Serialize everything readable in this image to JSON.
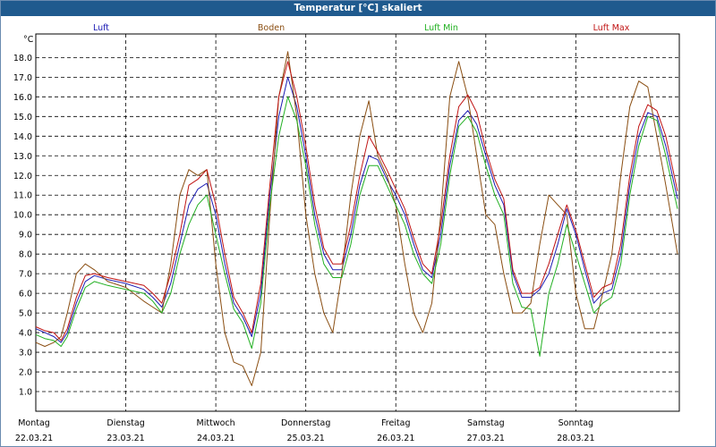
{
  "window": {
    "title": "Temperatur [°C] skaliert"
  },
  "colors": {
    "luft": "#1c1cb4",
    "boden": "#8a4e12",
    "luft_min": "#22b022",
    "luft_max": "#c01414",
    "grid": "#000000",
    "border": "#000000"
  },
  "chart_data": {
    "type": "line",
    "title": "Temperatur [°C] skaliert",
    "ylabel": "°C",
    "ylim": [
      0,
      19.2
    ],
    "yticks": [
      "1.0",
      "2.0",
      "3.0",
      "4.0",
      "5.0",
      "6.0",
      "7.0",
      "8.0",
      "9.0",
      "10.0",
      "11.0",
      "12.0",
      "13.0",
      "14.0",
      "15.0",
      "16.0",
      "17.0",
      "18.0"
    ],
    "xlim": [
      0,
      7.15
    ],
    "days": [
      {
        "day": "Montag",
        "date": "22.03.21"
      },
      {
        "day": "Dienstag",
        "date": "23.03.21"
      },
      {
        "day": "Mittwoch",
        "date": "24.03.21"
      },
      {
        "day": "Donnerstag",
        "date": "25.03.21"
      },
      {
        "day": "Freitag",
        "date": "26.03.21"
      },
      {
        "day": "Samstag",
        "date": "27.03.21"
      },
      {
        "day": "Sonntag",
        "date": "28.03.21"
      }
    ],
    "series": [
      {
        "name": "Luft",
        "key": "luft",
        "x": [
          0,
          0.1,
          0.2,
          0.28,
          0.35,
          0.45,
          0.55,
          0.65,
          0.8,
          1.0,
          1.2,
          1.3,
          1.4,
          1.5,
          1.6,
          1.7,
          1.8,
          1.9,
          2.0,
          2.1,
          2.2,
          2.3,
          2.4,
          2.5,
          2.6,
          2.7,
          2.8,
          2.9,
          3.0,
          3.1,
          3.2,
          3.3,
          3.4,
          3.5,
          3.6,
          3.7,
          3.8,
          3.9,
          4.0,
          4.1,
          4.2,
          4.3,
          4.4,
          4.5,
          4.6,
          4.7,
          4.8,
          4.9,
          5.0,
          5.1,
          5.2,
          5.3,
          5.4,
          5.5,
          5.6,
          5.7,
          5.8,
          5.9,
          6.0,
          6.1,
          6.2,
          6.3,
          6.4,
          6.5,
          6.6,
          6.7,
          6.8,
          6.9,
          7.0,
          7.13
        ],
        "values": [
          4.2,
          4.0,
          3.8,
          3.5,
          4.0,
          5.5,
          6.6,
          6.9,
          6.7,
          6.5,
          6.2,
          5.8,
          5.3,
          6.5,
          8.5,
          10.5,
          11.3,
          11.6,
          10.0,
          7.5,
          5.5,
          4.8,
          3.8,
          6.0,
          11.0,
          15.0,
          17.0,
          15.5,
          13.0,
          10.0,
          8.0,
          7.2,
          7.2,
          9.0,
          11.5,
          13.0,
          12.8,
          11.8,
          11.0,
          10.0,
          8.5,
          7.2,
          6.8,
          9.0,
          12.5,
          14.8,
          15.3,
          14.6,
          13.0,
          11.5,
          10.5,
          7.0,
          5.8,
          5.8,
          6.2,
          7.0,
          8.5,
          10.3,
          9.0,
          7.2,
          5.5,
          6.0,
          6.2,
          8.0,
          11.5,
          14.0,
          15.2,
          15.0,
          13.5,
          10.8
        ]
      },
      {
        "name": "Boden",
        "key": "boden",
        "x": [
          0,
          0.1,
          0.2,
          0.28,
          0.35,
          0.45,
          0.55,
          0.65,
          0.8,
          1.0,
          1.2,
          1.3,
          1.4,
          1.5,
          1.6,
          1.7,
          1.8,
          1.9,
          2.0,
          2.1,
          2.2,
          2.3,
          2.4,
          2.5,
          2.6,
          2.7,
          2.8,
          2.9,
          3.0,
          3.1,
          3.2,
          3.3,
          3.4,
          3.5,
          3.6,
          3.7,
          3.8,
          3.9,
          4.0,
          4.1,
          4.2,
          4.3,
          4.4,
          4.5,
          4.6,
          4.7,
          4.8,
          4.9,
          5.0,
          5.1,
          5.2,
          5.3,
          5.4,
          5.5,
          5.6,
          5.7,
          5.8,
          5.9,
          6.0,
          6.1,
          6.2,
          6.3,
          6.4,
          6.5,
          6.6,
          6.7,
          6.8,
          6.9,
          7.0,
          7.13
        ],
        "values": [
          3.5,
          3.3,
          3.5,
          3.8,
          5.0,
          7.0,
          7.5,
          7.2,
          6.6,
          6.3,
          5.6,
          5.3,
          5.0,
          7.5,
          11.0,
          12.3,
          12.0,
          12.3,
          7.5,
          4.0,
          2.5,
          2.3,
          1.3,
          3.0,
          10.0,
          16.0,
          18.3,
          15.0,
          10.0,
          7.0,
          5.0,
          4.0,
          7.0,
          11.0,
          14.0,
          15.8,
          13.0,
          12.0,
          10.5,
          7.5,
          5.0,
          4.0,
          5.5,
          10.0,
          16.0,
          17.8,
          16.0,
          13.0,
          10.0,
          9.5,
          7.0,
          5.0,
          5.0,
          5.5,
          8.5,
          11.0,
          10.5,
          10.0,
          6.0,
          4.2,
          4.2,
          6.0,
          8.0,
          12.0,
          15.5,
          16.8,
          16.5,
          14.0,
          11.5,
          8.0
        ]
      },
      {
        "name": "Luft Min",
        "key": "luft_min",
        "x": [
          0,
          0.1,
          0.2,
          0.28,
          0.35,
          0.45,
          0.55,
          0.65,
          0.8,
          1.0,
          1.2,
          1.3,
          1.4,
          1.5,
          1.6,
          1.7,
          1.8,
          1.9,
          2.0,
          2.1,
          2.2,
          2.3,
          2.4,
          2.5,
          2.6,
          2.7,
          2.8,
          2.9,
          3.0,
          3.1,
          3.2,
          3.3,
          3.4,
          3.5,
          3.6,
          3.7,
          3.8,
          3.9,
          4.0,
          4.1,
          4.2,
          4.3,
          4.4,
          4.5,
          4.6,
          4.7,
          4.8,
          4.9,
          5.0,
          5.1,
          5.2,
          5.3,
          5.4,
          5.5,
          5.6,
          5.7,
          5.8,
          5.9,
          6.0,
          6.1,
          6.2,
          6.3,
          6.4,
          6.5,
          6.6,
          6.7,
          6.8,
          6.9,
          7.0,
          7.13
        ],
        "values": [
          3.9,
          3.7,
          3.6,
          3.3,
          3.8,
          5.2,
          6.3,
          6.6,
          6.4,
          6.2,
          6.0,
          5.6,
          5.0,
          6.0,
          8.0,
          9.5,
          10.5,
          11.0,
          9.0,
          7.0,
          5.2,
          4.5,
          3.2,
          5.5,
          10.5,
          14.0,
          16.0,
          14.8,
          12.5,
          9.5,
          7.5,
          6.8,
          6.8,
          8.5,
          11.0,
          12.5,
          12.5,
          11.5,
          10.5,
          9.5,
          8.0,
          7.0,
          6.5,
          8.5,
          12.0,
          14.5,
          15.0,
          14.2,
          12.5,
          11.0,
          10.0,
          6.5,
          5.3,
          5.2,
          2.8,
          6.0,
          7.5,
          9.5,
          8.0,
          6.5,
          5.0,
          5.5,
          5.8,
          7.5,
          11.0,
          13.5,
          15.0,
          14.8,
          13.0,
          10.3
        ]
      },
      {
        "name": "Luft Max",
        "key": "luft_max",
        "x": [
          0,
          0.1,
          0.2,
          0.28,
          0.35,
          0.45,
          0.55,
          0.65,
          0.8,
          1.0,
          1.2,
          1.3,
          1.4,
          1.5,
          1.6,
          1.7,
          1.8,
          1.9,
          2.0,
          2.1,
          2.2,
          2.3,
          2.4,
          2.5,
          2.6,
          2.7,
          2.8,
          2.9,
          3.0,
          3.1,
          3.2,
          3.3,
          3.4,
          3.5,
          3.6,
          3.7,
          3.8,
          3.9,
          4.0,
          4.1,
          4.2,
          4.3,
          4.4,
          4.5,
          4.6,
          4.7,
          4.8,
          4.9,
          5.0,
          5.1,
          5.2,
          5.3,
          5.4,
          5.5,
          5.6,
          5.7,
          5.8,
          5.9,
          6.0,
          6.1,
          6.2,
          6.3,
          6.4,
          6.5,
          6.6,
          6.7,
          6.8,
          6.9,
          7.0,
          7.13
        ],
        "values": [
          4.3,
          4.1,
          4.0,
          3.6,
          4.2,
          5.8,
          6.9,
          7.0,
          6.8,
          6.6,
          6.4,
          6.0,
          5.5,
          7.0,
          9.0,
          11.5,
          11.8,
          12.3,
          10.5,
          8.0,
          5.8,
          5.0,
          4.0,
          6.5,
          11.5,
          16.0,
          17.8,
          16.0,
          13.5,
          10.5,
          8.3,
          7.5,
          7.5,
          9.5,
          12.0,
          14.0,
          13.2,
          12.3,
          11.3,
          10.3,
          8.8,
          7.5,
          7.0,
          9.5,
          13.0,
          15.5,
          16.1,
          15.2,
          13.3,
          11.8,
          10.8,
          7.2,
          6.0,
          6.0,
          6.3,
          7.5,
          9.0,
          10.5,
          9.2,
          7.5,
          5.8,
          6.3,
          6.5,
          8.5,
          12.0,
          14.5,
          15.6,
          15.3,
          14.0,
          11.2
        ]
      }
    ]
  }
}
